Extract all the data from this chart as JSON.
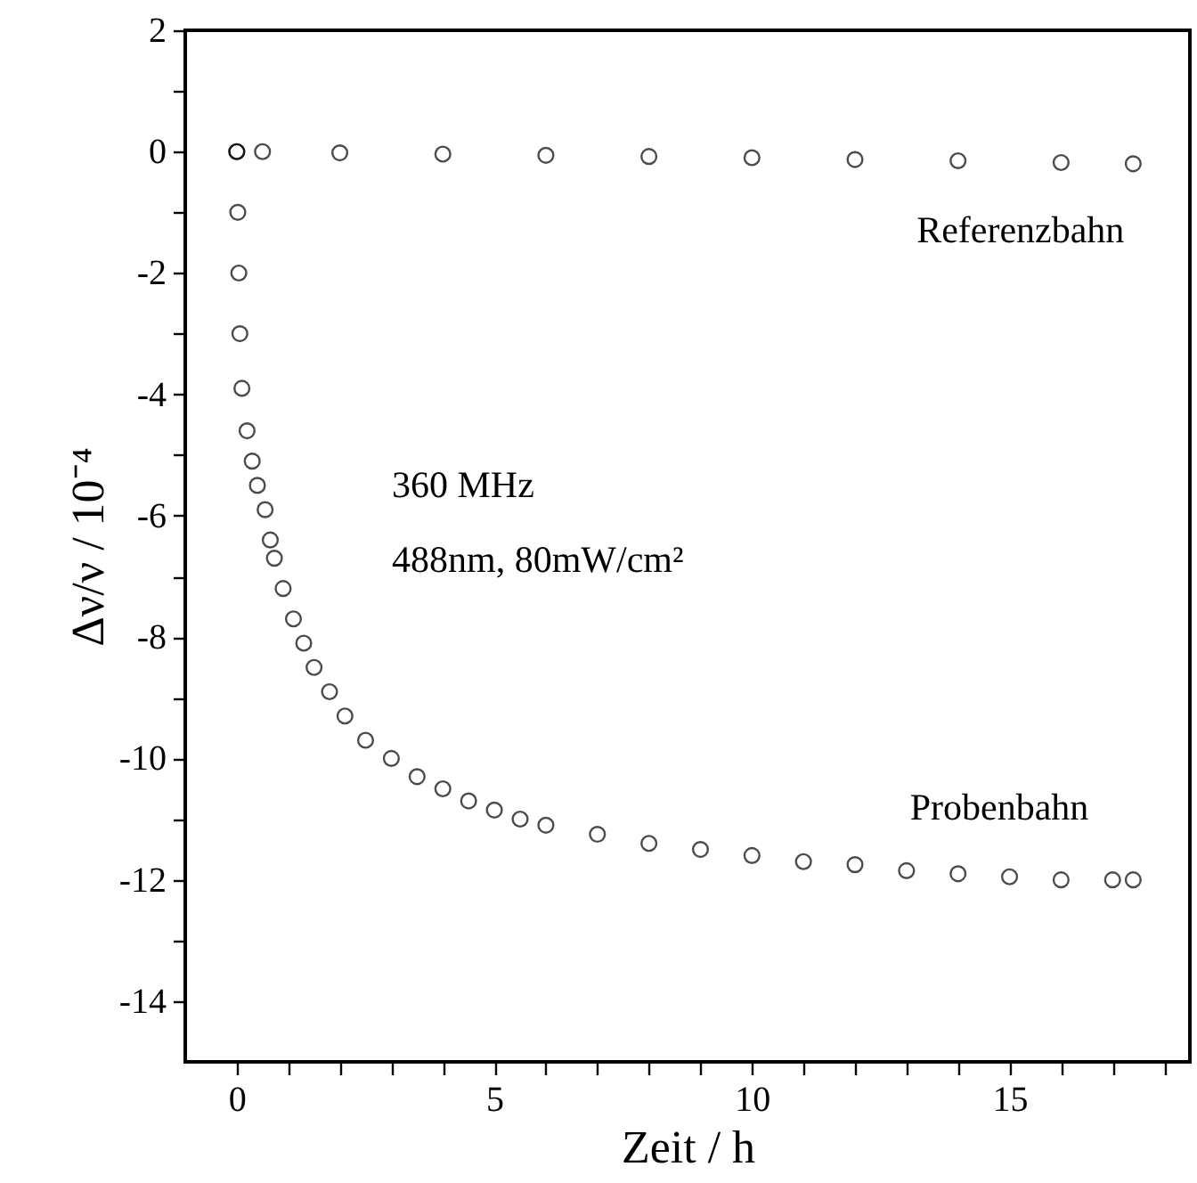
{
  "chart_data": {
    "type": "scatter",
    "xlabel": "Zeit  /   h",
    "ylabel": "Δν/ν  /  10⁻⁴",
    "xlim": [
      -1,
      18.5
    ],
    "ylim": [
      -15,
      2
    ],
    "xticks": [
      0,
      {
        "value": 1,
        "label": null
      },
      {
        "value": 2,
        "label": null
      },
      {
        "value": 3,
        "label": null
      },
      {
        "value": 4,
        "label": null
      },
      5,
      {
        "value": 6,
        "label": null
      },
      {
        "value": 7,
        "label": null
      },
      {
        "value": 8,
        "label": null
      },
      {
        "value": 9,
        "label": null
      },
      10,
      {
        "value": 11,
        "label": null
      },
      {
        "value": 12,
        "label": null
      },
      {
        "value": 13,
        "label": null
      },
      {
        "value": 14,
        "label": null
      },
      15,
      {
        "value": 16,
        "label": null
      },
      {
        "value": 17,
        "label": null
      },
      {
        "value": 18,
        "label": null
      }
    ],
    "yticks": [
      -14,
      {
        "value": -13,
        "label": null
      },
      -12,
      {
        "value": -11,
        "label": null
      },
      -10,
      {
        "value": -9,
        "label": null
      },
      -8,
      {
        "value": -7,
        "label": null
      },
      -6,
      {
        "value": -5,
        "label": null
      },
      -4,
      {
        "value": -3,
        "label": null
      },
      -2,
      {
        "value": -1,
        "label": null
      },
      0,
      {
        "value": 1,
        "label": null
      },
      2
    ],
    "marker": "circle",
    "grid": false,
    "legend": false,
    "annotations": [
      "360 MHz",
      "488nm, 80mW/cm²"
    ],
    "series": [
      {
        "name": "Referenzbahn",
        "color": "#000000",
        "x": [
          0,
          0.5,
          2,
          4,
          6,
          8,
          10,
          12,
          14,
          16,
          17.4
        ],
        "values": [
          0,
          0,
          -0.02,
          -0.04,
          -0.06,
          -0.08,
          -0.1,
          -0.13,
          -0.15,
          -0.18,
          -0.2
        ]
      },
      {
        "name": "Probenbahn",
        "color": "#000000",
        "x": [
          0,
          0.02,
          0.04,
          0.06,
          0.1,
          0.2,
          0.3,
          0.4,
          0.55,
          0.65,
          0.73,
          0.9,
          1.1,
          1.3,
          1.5,
          1.8,
          2.1,
          2.5,
          3,
          3.5,
          4,
          4.5,
          5,
          5.5,
          6,
          7,
          8,
          9,
          10,
          11,
          12,
          13,
          14,
          15,
          16,
          17,
          17.4
        ],
        "values": [
          0,
          -1,
          -2,
          -3,
          -3.9,
          -4.6,
          -5.1,
          -5.5,
          -5.9,
          -6.4,
          -6.7,
          -7.2,
          -7.7,
          -8.1,
          -8.5,
          -8.9,
          -9.3,
          -9.7,
          -10,
          -10.3,
          -10.5,
          -10.7,
          -10.85,
          -11,
          -11.1,
          -11.25,
          -11.4,
          -11.5,
          -11.6,
          -11.7,
          -11.75,
          -11.85,
          -11.9,
          -11.95,
          -12,
          -12,
          -12
        ]
      }
    ]
  }
}
